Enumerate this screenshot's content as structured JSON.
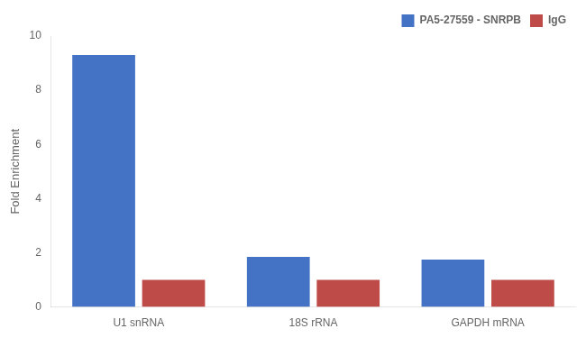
{
  "chart_data": {
    "type": "bar",
    "categories": [
      "U1 snRNA",
      "18S rRNA",
      "GAPDH mRNA"
    ],
    "series": [
      {
        "name": "PA5-27559 - SNRPB",
        "color": "#4472C4",
        "values": [
          9.3,
          1.85,
          1.75
        ]
      },
      {
        "name": "IgG",
        "color": "#BE4B48",
        "values": [
          1.0,
          1.0,
          1.0
        ]
      }
    ],
    "ylabel": "Fold Enrichment",
    "ylim": [
      0,
      10
    ],
    "yticks": [
      0,
      2,
      4,
      6,
      8,
      10
    ],
    "grid": false,
    "legend": "upper right"
  }
}
